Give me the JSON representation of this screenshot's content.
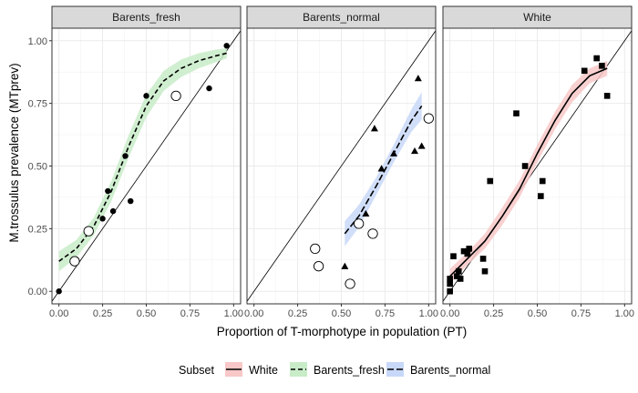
{
  "chart_data": {
    "type": "scatter",
    "xlabel": "Proportion of T-morphotype in population (PT)",
    "ylabel": "M.trossulus prevalence (MTprev)",
    "xlim": [
      -0.04,
      1.04
    ],
    "ylim": [
      -0.05,
      1.05
    ],
    "xticks": [
      "0.00",
      "0.25",
      "0.50",
      "0.75",
      "1.00"
    ],
    "yticks": [
      "0.00",
      "0.25",
      "0.50",
      "0.75",
      "1.00"
    ],
    "grid": true,
    "legend": {
      "title": "Subset",
      "placement": "bottom",
      "entries": [
        {
          "label": "White",
          "fill": "#f8c8c8",
          "line": "solid"
        },
        {
          "label": "Barents_fresh",
          "fill": "#c8ecc8",
          "line": "dashed"
        },
        {
          "label": "Barents_normal",
          "fill": "#c8d8f8",
          "line": "longdash"
        }
      ]
    },
    "panels": [
      {
        "title": "Barents_fresh",
        "marker": "circle",
        "band_color": "#c8ecc8",
        "line_style": "dashed",
        "filled_points": [
          [
            0.0,
            0.0
          ],
          [
            0.1,
            0.12
          ],
          [
            0.25,
            0.29
          ],
          [
            0.28,
            0.4
          ],
          [
            0.31,
            0.32
          ],
          [
            0.38,
            0.54
          ],
          [
            0.41,
            0.36
          ],
          [
            0.5,
            0.78
          ],
          [
            0.86,
            0.81
          ],
          [
            0.96,
            0.98
          ]
        ],
        "open_points": [
          [
            0.09,
            0.12
          ],
          [
            0.17,
            0.24
          ],
          [
            0.67,
            0.78
          ]
        ],
        "fit": [
          [
            0.0,
            0.12
          ],
          [
            0.1,
            0.17
          ],
          [
            0.2,
            0.26
          ],
          [
            0.3,
            0.4
          ],
          [
            0.4,
            0.58
          ],
          [
            0.5,
            0.74
          ],
          [
            0.6,
            0.84
          ],
          [
            0.7,
            0.89
          ],
          [
            0.8,
            0.92
          ],
          [
            0.9,
            0.94
          ],
          [
            0.96,
            0.95
          ]
        ],
        "band_width": [
          0.04,
          0.035,
          0.035,
          0.04,
          0.045,
          0.045,
          0.04,
          0.035,
          0.03,
          0.025,
          0.02
        ]
      },
      {
        "title": "Barents_normal",
        "marker": "triangle",
        "band_color": "#c8d8f8",
        "line_style": "longdash",
        "filled_points": [
          [
            0.52,
            0.1
          ],
          [
            0.64,
            0.31
          ],
          [
            0.69,
            0.65
          ],
          [
            0.73,
            0.49
          ],
          [
            0.8,
            0.55
          ],
          [
            0.92,
            0.56
          ],
          [
            0.94,
            0.85
          ],
          [
            0.96,
            0.58
          ]
        ],
        "open_points": [
          [
            0.35,
            0.17
          ],
          [
            0.37,
            0.1
          ],
          [
            0.55,
            0.03
          ],
          [
            0.6,
            0.27
          ],
          [
            0.68,
            0.23
          ],
          [
            1.0,
            0.69
          ]
        ],
        "fit": [
          [
            0.52,
            0.23
          ],
          [
            0.6,
            0.3
          ],
          [
            0.7,
            0.42
          ],
          [
            0.8,
            0.55
          ],
          [
            0.9,
            0.68
          ],
          [
            0.96,
            0.74
          ]
        ],
        "band_width": [
          0.05,
          0.045,
          0.035,
          0.035,
          0.045,
          0.055
        ]
      },
      {
        "title": "White",
        "marker": "square",
        "band_color": "#f8c8c8",
        "line_style": "solid",
        "filled_points": [
          [
            0.0,
            0.0
          ],
          [
            0.0,
            0.03
          ],
          [
            0.0,
            0.05
          ],
          [
            0.02,
            0.14
          ],
          [
            0.04,
            0.06
          ],
          [
            0.05,
            0.08
          ],
          [
            0.06,
            0.05
          ],
          [
            0.08,
            0.16
          ],
          [
            0.1,
            0.15
          ],
          [
            0.11,
            0.17
          ],
          [
            0.19,
            0.13
          ],
          [
            0.2,
            0.08
          ],
          [
            0.23,
            0.44
          ],
          [
            0.38,
            0.71
          ],
          [
            0.43,
            0.5
          ],
          [
            0.52,
            0.38
          ],
          [
            0.53,
            0.44
          ],
          [
            0.77,
            0.88
          ],
          [
            0.84,
            0.93
          ],
          [
            0.87,
            0.9
          ],
          [
            0.9,
            0.78
          ]
        ],
        "open_points": [],
        "fit": [
          [
            0.0,
            0.06
          ],
          [
            0.1,
            0.13
          ],
          [
            0.2,
            0.2
          ],
          [
            0.3,
            0.3
          ],
          [
            0.4,
            0.41
          ],
          [
            0.5,
            0.55
          ],
          [
            0.6,
            0.68
          ],
          [
            0.7,
            0.79
          ],
          [
            0.8,
            0.86
          ],
          [
            0.9,
            0.89
          ]
        ],
        "band_width": [
          0.03,
          0.025,
          0.03,
          0.035,
          0.035,
          0.035,
          0.035,
          0.035,
          0.03,
          0.03
        ]
      }
    ]
  }
}
